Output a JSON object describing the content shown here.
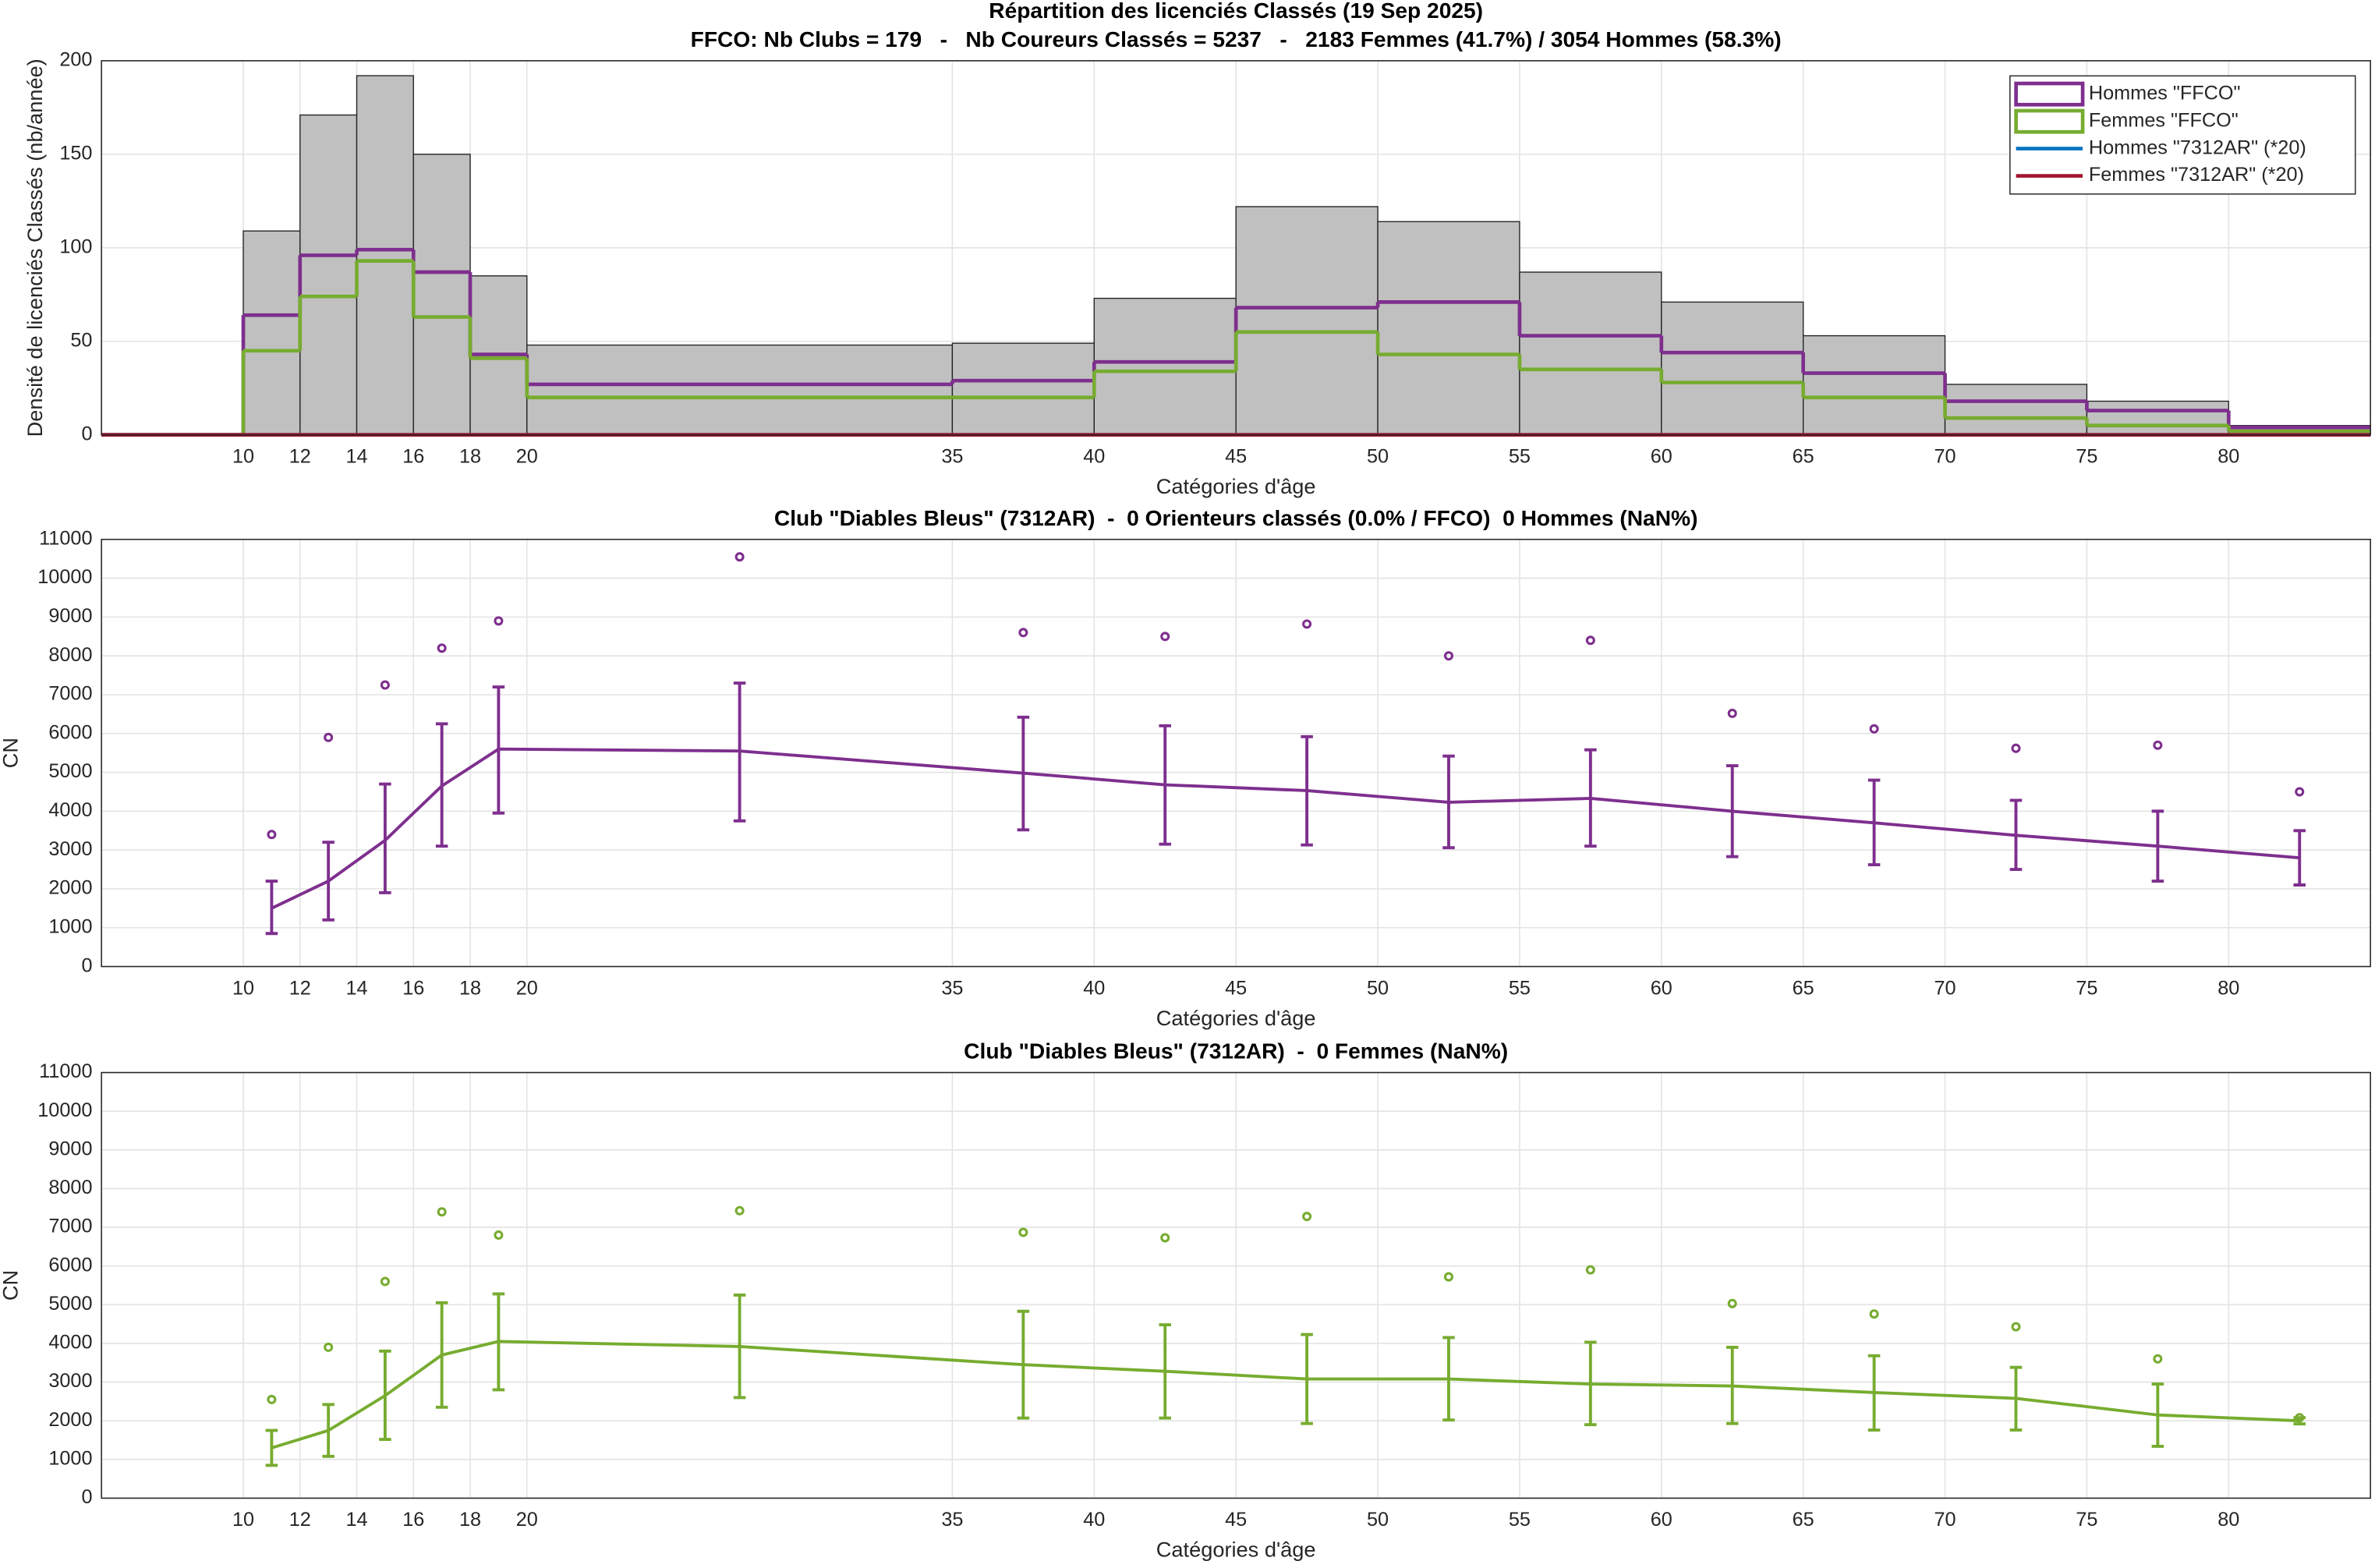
{
  "chart_data": [
    {
      "type": "histogram",
      "title": "Répartition des licenciés Classés (19 Sep 2025)",
      "subtitle": "FFCO: Nb Clubs = 179   -   Nb Coureurs Classés = 5237   -   2183 Femmes (41.7%) / 3054 Hommes (58.3%)",
      "xlabel": "Catégories d'âge",
      "ylabel": "Densité de licenciés Classés (nb/année)",
      "bins": [
        10,
        12,
        14,
        16,
        18,
        20,
        35,
        40,
        45,
        50,
        55,
        60,
        65,
        70,
        75,
        80,
        85
      ],
      "values": [
        109,
        171,
        192,
        150,
        85,
        48,
        49,
        73,
        122,
        114,
        87,
        71,
        53,
        27,
        18,
        5
      ],
      "color": "#c0c0c0",
      "series": [
        {
          "name": "Hommes \"FFCO\"",
          "color": "#7e2f8e",
          "values": [
            64,
            96,
            99,
            87,
            43,
            27,
            29,
            39,
            68,
            71,
            53,
            44,
            33,
            18,
            13,
            4
          ]
        },
        {
          "name": "Femmes \"FFCO\"",
          "color": "#77ac30",
          "values": [
            45,
            74,
            93,
            63,
            41,
            20,
            20,
            34,
            55,
            43,
            35,
            28,
            20,
            9,
            5,
            2
          ]
        },
        {
          "name": "Hommes \"7312AR\" (*20)",
          "color": "#0072bd",
          "values": [
            0,
            0,
            0,
            0,
            0,
            0,
            0,
            0,
            0,
            0,
            0,
            0,
            0,
            0,
            0,
            0
          ]
        },
        {
          "name": "Femmes \"7312AR\" (*20)",
          "color": "#a2142f",
          "values": [
            0,
            0,
            0,
            0,
            0,
            0,
            0,
            0,
            0,
            0,
            0,
            0,
            0,
            0,
            0,
            0
          ]
        }
      ],
      "xlim": [
        5,
        85
      ],
      "xticks": [
        10,
        12,
        14,
        16,
        18,
        20,
        35,
        40,
        45,
        50,
        55,
        60,
        65,
        70,
        75,
        80
      ],
      "ylim": [
        0,
        200
      ],
      "yticks": [
        0,
        50,
        100,
        150,
        200
      ],
      "grid": true,
      "legend": "northeast"
    },
    {
      "type": "errorbar",
      "title": "Club \"Diables Bleus\" (7312AR)  -  0 Orienteurs classés (0.0% / FFCO)  0 Hommes (NaN%)",
      "xlabel": "Catégories d'âge",
      "ylabel": "CN",
      "x": [
        11,
        13,
        15,
        17,
        19,
        27.5,
        37.5,
        42.5,
        47.5,
        52.5,
        57.5,
        62.5,
        67.5,
        72.5,
        77.5,
        82.5
      ],
      "series": [
        {
          "color": "#7e2f8e",
          "values": [
            1500,
            2200,
            3250,
            4650,
            5600,
            5550,
            4980,
            4680,
            4530,
            4230,
            4330,
            4000,
            3700,
            3380,
            3100,
            2800
          ],
          "lower": [
            850,
            1200,
            1900,
            3100,
            3950,
            3750,
            3520,
            3150,
            3130,
            3060,
            3100,
            2830,
            2620,
            2500,
            2200,
            2100
          ],
          "upper": [
            2200,
            3200,
            4700,
            6250,
            7200,
            7300,
            6420,
            6200,
            5920,
            5420,
            5580,
            5170,
            4800,
            4280,
            4000,
            3500
          ],
          "outliers": [
            3400,
            5900,
            7250,
            8200,
            8900,
            10550,
            8600,
            8500,
            8820,
            8000,
            8400,
            6520,
            6120,
            5620,
            5700,
            4500
          ]
        }
      ],
      "xlim": [
        5,
        85
      ],
      "xticks": [
        10,
        12,
        14,
        16,
        18,
        20,
        35,
        40,
        45,
        50,
        55,
        60,
        65,
        70,
        75,
        80
      ],
      "ylim": [
        0,
        11000
      ],
      "yticks": [
        0,
        1000,
        2000,
        3000,
        4000,
        5000,
        6000,
        7000,
        8000,
        9000,
        10000,
        11000
      ],
      "grid": true
    },
    {
      "type": "errorbar",
      "title": "Club \"Diables Bleus\" (7312AR)  -  0 Femmes (NaN%)",
      "xlabel": "Catégories d'âge",
      "ylabel": "CN",
      "x": [
        11,
        13,
        15,
        17,
        19,
        27.5,
        37.5,
        42.5,
        47.5,
        52.5,
        57.5,
        62.5,
        67.5,
        72.5,
        77.5,
        82.5
      ],
      "series": [
        {
          "color": "#77ac30",
          "values": [
            1300,
            1750,
            2650,
            3700,
            4050,
            3920,
            3450,
            3280,
            3080,
            3080,
            2950,
            2900,
            2730,
            2580,
            2150,
            2000
          ],
          "lower": [
            850,
            1080,
            1520,
            2350,
            2800,
            2600,
            2070,
            2070,
            1930,
            2020,
            1900,
            1930,
            1760,
            1760,
            1340,
            1920
          ],
          "upper": [
            1750,
            2420,
            3800,
            5050,
            5280,
            5250,
            4830,
            4480,
            4230,
            4150,
            4030,
            3900,
            3680,
            3380,
            2950,
            2080
          ],
          "outliers": [
            2550,
            3900,
            5600,
            7400,
            6800,
            7430,
            6870,
            6730,
            7280,
            5720,
            5900,
            5030,
            4760,
            4430,
            3600,
            2080
          ]
        }
      ],
      "xlim": [
        5,
        85
      ],
      "xticks": [
        10,
        12,
        14,
        16,
        18,
        20,
        35,
        40,
        45,
        50,
        55,
        60,
        65,
        70,
        75,
        80
      ],
      "ylim": [
        0,
        11000
      ],
      "yticks": [
        0,
        1000,
        2000,
        3000,
        4000,
        5000,
        6000,
        7000,
        8000,
        9000,
        10000,
        11000
      ],
      "grid": true
    }
  ]
}
